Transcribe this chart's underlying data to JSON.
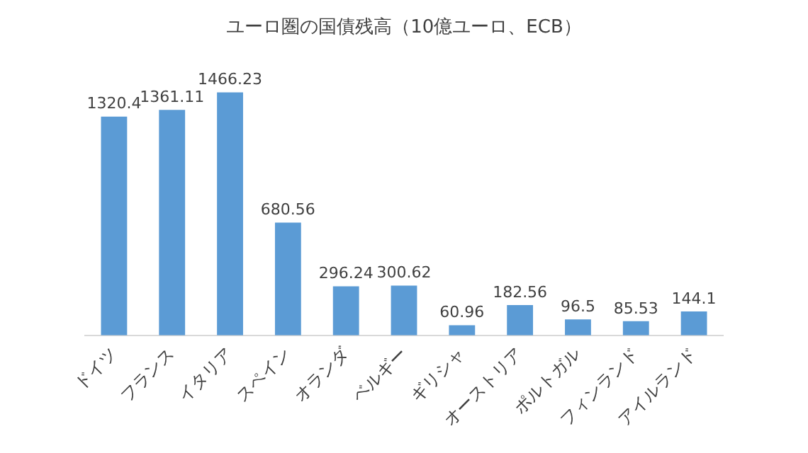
{
  "chart_data": {
    "type": "bar",
    "title": "ユーロ圏の国債残高（10億ユーロ、ECB）",
    "categories": [
      "ドイツ",
      "フランス",
      "イタリア",
      "スペイン",
      "オランダ",
      "ベルギー",
      "ギリシャ",
      "オーストリア",
      "ポルトガル",
      "フィンランド",
      "アイルランド"
    ],
    "values": [
      1320.4,
      1361.11,
      1466.23,
      680.56,
      296.24,
      300.62,
      60.96,
      182.56,
      96.5,
      85.53,
      144.1
    ],
    "color": "#5b9bd5",
    "data_labels": true,
    "grid": false,
    "legend": false,
    "tick_labels": "x"
  }
}
